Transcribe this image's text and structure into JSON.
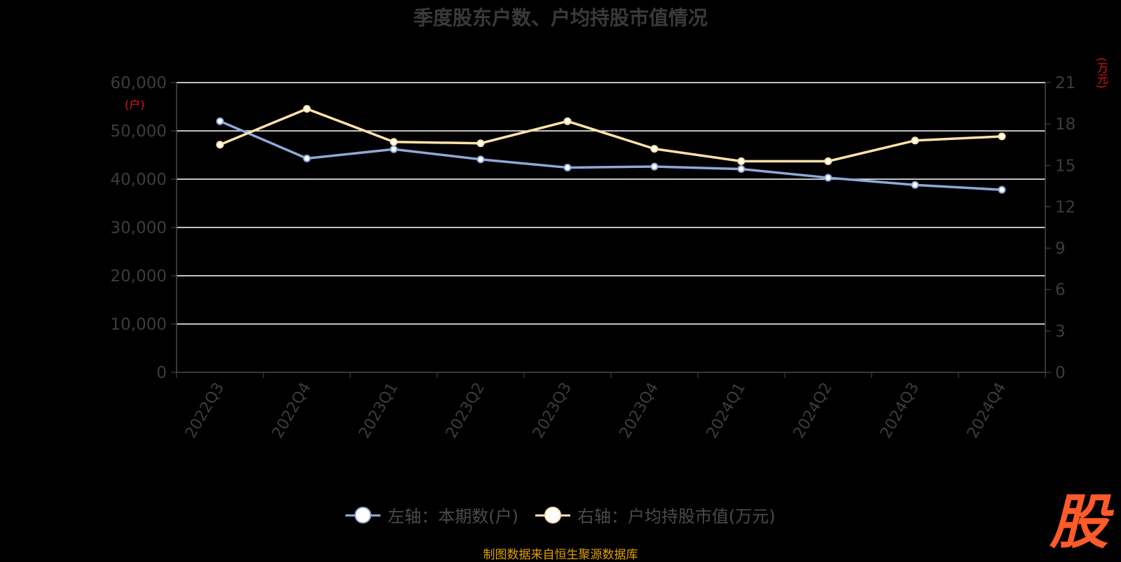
{
  "chart_data": {
    "type": "line",
    "title": "季度股东户数、户均持股市值情况",
    "categories": [
      "2022Q3",
      "2022Q4",
      "2023Q1",
      "2023Q2",
      "2023Q3",
      "2023Q4",
      "2024Q1",
      "2024Q2",
      "2024Q3",
      "2024Q4"
    ],
    "y_left": {
      "unit": "(户)",
      "ylim": [
        0,
        60000
      ],
      "ticks": [
        "0",
        "10,000",
        "20,000",
        "30,000",
        "40,000",
        "50,000",
        "60,000"
      ]
    },
    "y_right": {
      "unit": "(万元)",
      "ylim": [
        0,
        21
      ],
      "ticks": [
        "0",
        "3",
        "6",
        "9",
        "12",
        "15",
        "18",
        "21"
      ]
    },
    "series": [
      {
        "name": "左轴：本期数(户)",
        "axis": "left",
        "color": "#8fa8d8",
        "values": [
          52000,
          44300,
          46200,
          44100,
          42400,
          42600,
          42100,
          40300,
          38800,
          37800
        ]
      },
      {
        "name": "右轴：户均持股市值(万元)",
        "axis": "right",
        "color": "#ffe2a8",
        "values": [
          16.5,
          19.1,
          16.7,
          16.6,
          18.2,
          16.2,
          15.3,
          15.3,
          16.8,
          17.1
        ]
      }
    ],
    "grid": true,
    "legend": "bottom-center"
  },
  "source": "制图数据来自恒生聚源数据库",
  "watermark": "股",
  "colors": {
    "background": "#000000",
    "grid": "#ffffff",
    "axis_text": "#3c3c3c",
    "unit_text": "#e0141e"
  }
}
